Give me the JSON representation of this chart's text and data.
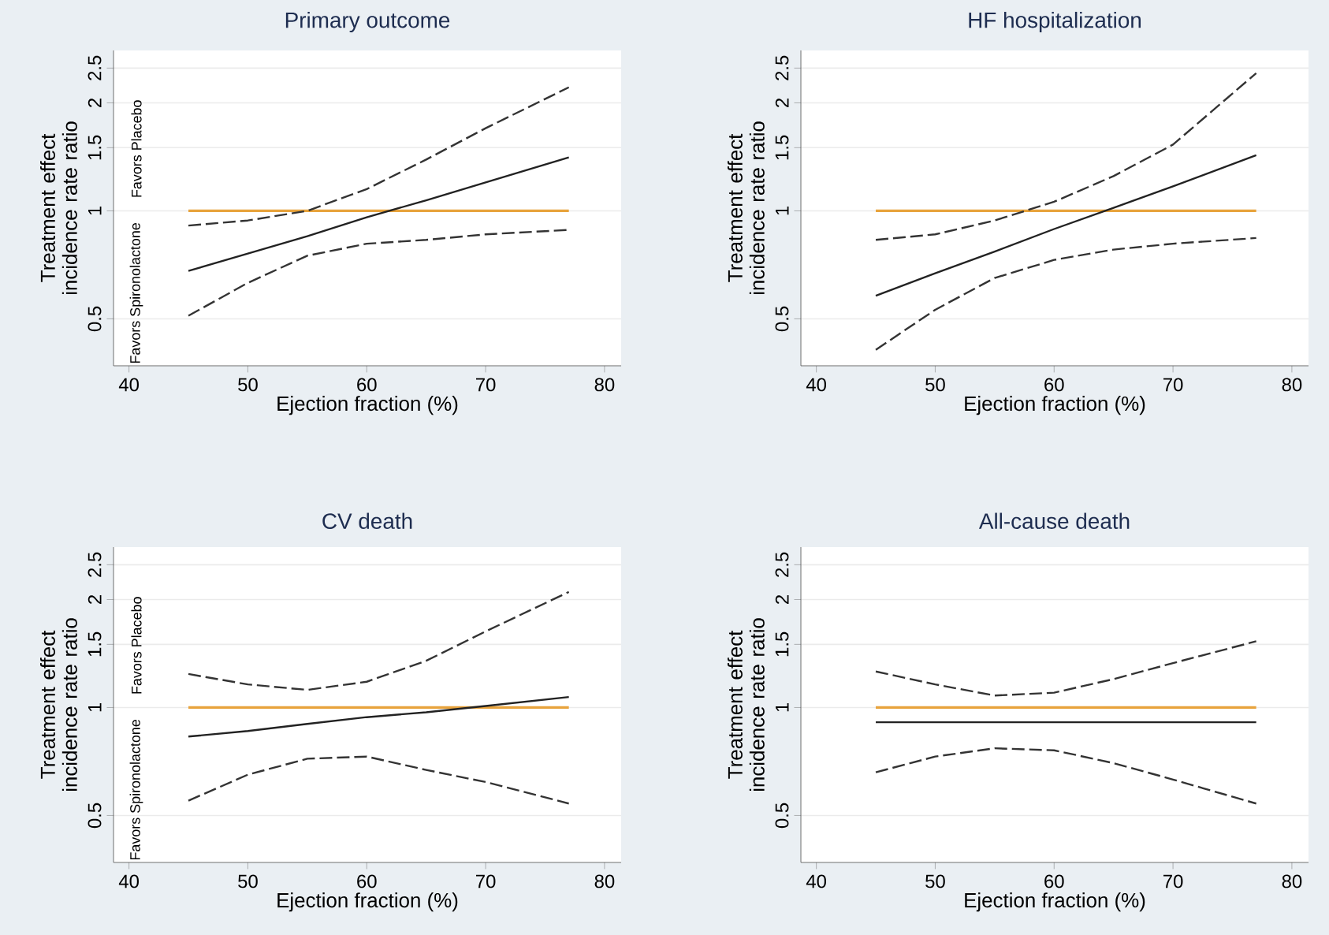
{
  "chart_data": [
    {
      "type": "line",
      "title": "Primary outcome",
      "xlabel": "Ejection fraction (%)",
      "ylabel": "Treatment effect incidence rate ratio",
      "log": "y",
      "grid": "y",
      "xlim": [
        38.7,
        81.4
      ],
      "xticks": [
        40,
        50,
        60,
        70,
        80
      ],
      "ylim": [
        0.37,
        2.8
      ],
      "yticks": [
        0.5,
        1,
        1.5,
        2,
        2.5
      ],
      "annotations": [
        "Favors Spironolactone",
        "Favors Placebo"
      ],
      "ref_lines": [
        {
          "axis": "y",
          "value": 1,
          "color": "#e8a33c"
        }
      ],
      "x": [
        45,
        50,
        55,
        60,
        65,
        70,
        77
      ],
      "series": [
        {
          "color": "#222222",
          "line_style": "solid",
          "values": [
            0.68,
            0.76,
            0.85,
            0.96,
            1.07,
            1.2,
            1.41
          ]
        },
        {
          "color": "#333333",
          "line_style": "dashed",
          "values": [
            0.91,
            0.94,
            1.0,
            1.15,
            1.39,
            1.7,
            2.21
          ]
        },
        {
          "color": "#333333",
          "line_style": "dashed",
          "values": [
            0.51,
            0.63,
            0.75,
            0.81,
            0.83,
            0.86,
            0.885
          ]
        }
      ]
    },
    {
      "type": "line",
      "title": "HF hospitalization",
      "xlabel": "Ejection fraction (%)",
      "ylabel": "Treatment effect incidence rate ratio",
      "log": "y",
      "grid": "y",
      "xlim": [
        38.7,
        81.4
      ],
      "xticks": [
        40,
        50,
        60,
        70,
        80
      ],
      "ylim": [
        0.37,
        2.8
      ],
      "yticks": [
        0.5,
        1,
        1.5,
        2,
        2.5
      ],
      "ref_lines": [
        {
          "axis": "y",
          "value": 1,
          "color": "#e8a33c"
        }
      ],
      "x": [
        45,
        50,
        55,
        60,
        65,
        70,
        77
      ],
      "series": [
        {
          "color": "#222222",
          "line_style": "solid",
          "values": [
            0.58,
            0.67,
            0.77,
            0.89,
            1.02,
            1.17,
            1.43
          ]
        },
        {
          "color": "#333333",
          "line_style": "dashed",
          "values": [
            0.83,
            0.86,
            0.94,
            1.06,
            1.25,
            1.53,
            2.42
          ]
        },
        {
          "color": "#333333",
          "line_style": "dashed",
          "values": [
            0.41,
            0.53,
            0.65,
            0.73,
            0.78,
            0.81,
            0.84
          ]
        }
      ]
    },
    {
      "type": "line",
      "title": "CV death",
      "xlabel": "Ejection fraction (%)",
      "ylabel": "Treatment effect incidence rate ratio",
      "log": "y",
      "grid": "y",
      "xlim": [
        38.7,
        81.4
      ],
      "xticks": [
        40,
        50,
        60,
        70,
        80
      ],
      "ylim": [
        0.37,
        2.8
      ],
      "yticks": [
        0.5,
        1,
        1.5,
        2,
        2.5
      ],
      "annotations": [
        "Favors Spironolactone",
        "Favors Placebo"
      ],
      "ref_lines": [
        {
          "axis": "y",
          "value": 1,
          "color": "#e8a33c"
        }
      ],
      "x": [
        45,
        50,
        55,
        60,
        65,
        70,
        77
      ],
      "series": [
        {
          "color": "#222222",
          "line_style": "solid",
          "values": [
            0.83,
            0.86,
            0.9,
            0.94,
            0.97,
            1.01,
            1.07
          ]
        },
        {
          "color": "#333333",
          "line_style": "dashed",
          "values": [
            1.24,
            1.16,
            1.12,
            1.18,
            1.35,
            1.63,
            2.1
          ]
        },
        {
          "color": "#333333",
          "line_style": "dashed",
          "values": [
            0.55,
            0.65,
            0.72,
            0.73,
            0.67,
            0.62,
            0.54
          ]
        }
      ]
    },
    {
      "type": "line",
      "title": "All-cause death",
      "xlabel": "Ejection fraction (%)",
      "ylabel": "Treatment effect incidence rate ratio",
      "log": "y",
      "grid": "y",
      "xlim": [
        38.7,
        81.4
      ],
      "xticks": [
        40,
        50,
        60,
        70,
        80
      ],
      "ylim": [
        0.37,
        2.8
      ],
      "yticks": [
        0.5,
        1,
        1.5,
        2,
        2.5
      ],
      "ref_lines": [
        {
          "axis": "y",
          "value": 1,
          "color": "#e8a33c"
        }
      ],
      "x": [
        45,
        50,
        55,
        60,
        65,
        70,
        77
      ],
      "series": [
        {
          "color": "#222222",
          "line_style": "solid",
          "values": [
            0.91,
            0.91,
            0.91,
            0.91,
            0.91,
            0.91,
            0.91
          ]
        },
        {
          "color": "#333333",
          "line_style": "dashed",
          "values": [
            1.26,
            1.16,
            1.08,
            1.1,
            1.2,
            1.33,
            1.53
          ]
        },
        {
          "color": "#333333",
          "line_style": "dashed",
          "values": [
            0.66,
            0.73,
            0.77,
            0.76,
            0.7,
            0.63,
            0.54
          ]
        }
      ]
    }
  ]
}
